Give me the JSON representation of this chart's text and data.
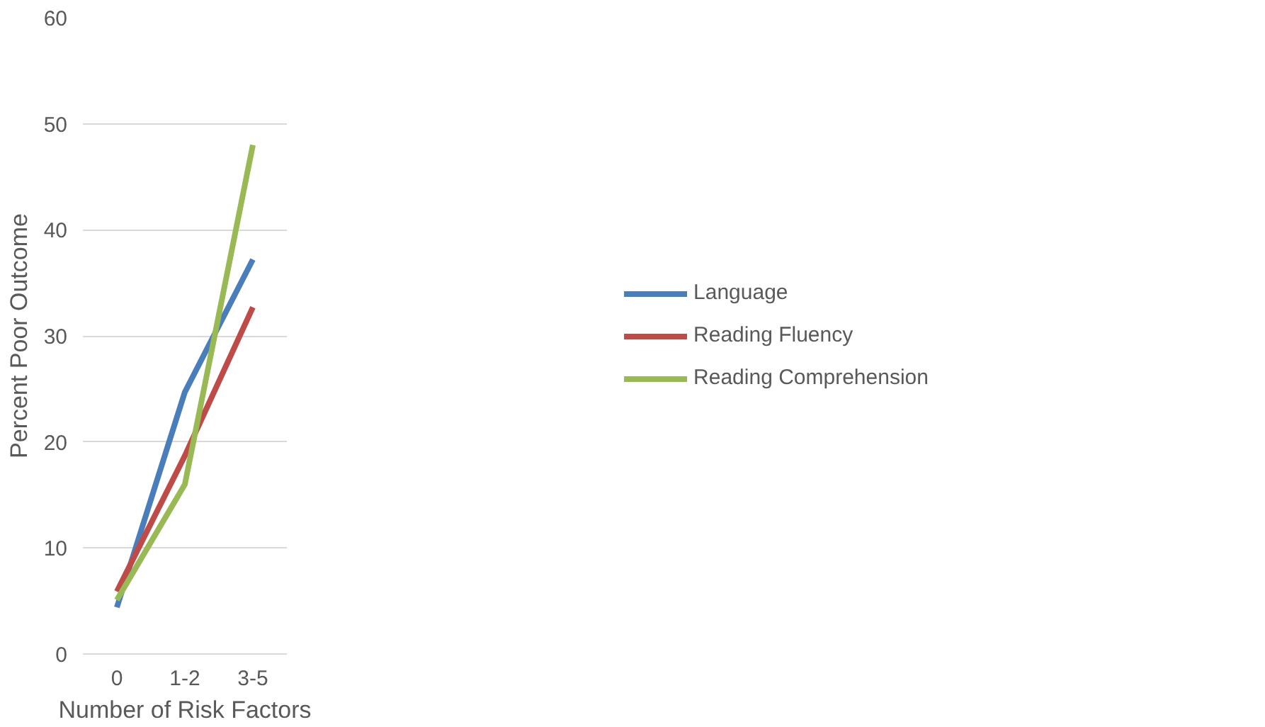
{
  "chart_data": {
    "type": "line",
    "xlabel": "Number of Risk Factors",
    "ylabel": "Percent Poor Outcome",
    "categories": [
      "0",
      "1-2",
      "3-5"
    ],
    "series": [
      {
        "name": "Language",
        "color": "#4a7ebb",
        "values": [
          4.4,
          24.7,
          37.2
        ]
      },
      {
        "name": "Reading Fluency",
        "color": "#be4b48",
        "values": [
          5.9,
          18.7,
          32.7
        ]
      },
      {
        "name": "Reading Comprehension",
        "color": "#98b954",
        "values": [
          5.1,
          16.0,
          48.0
        ]
      }
    ],
    "ylim": [
      0,
      60
    ],
    "yticks": [
      0,
      10,
      20,
      30,
      40,
      50,
      60
    ],
    "grid": "y",
    "legend": "right",
    "marker": "none",
    "line_style": "solid"
  }
}
